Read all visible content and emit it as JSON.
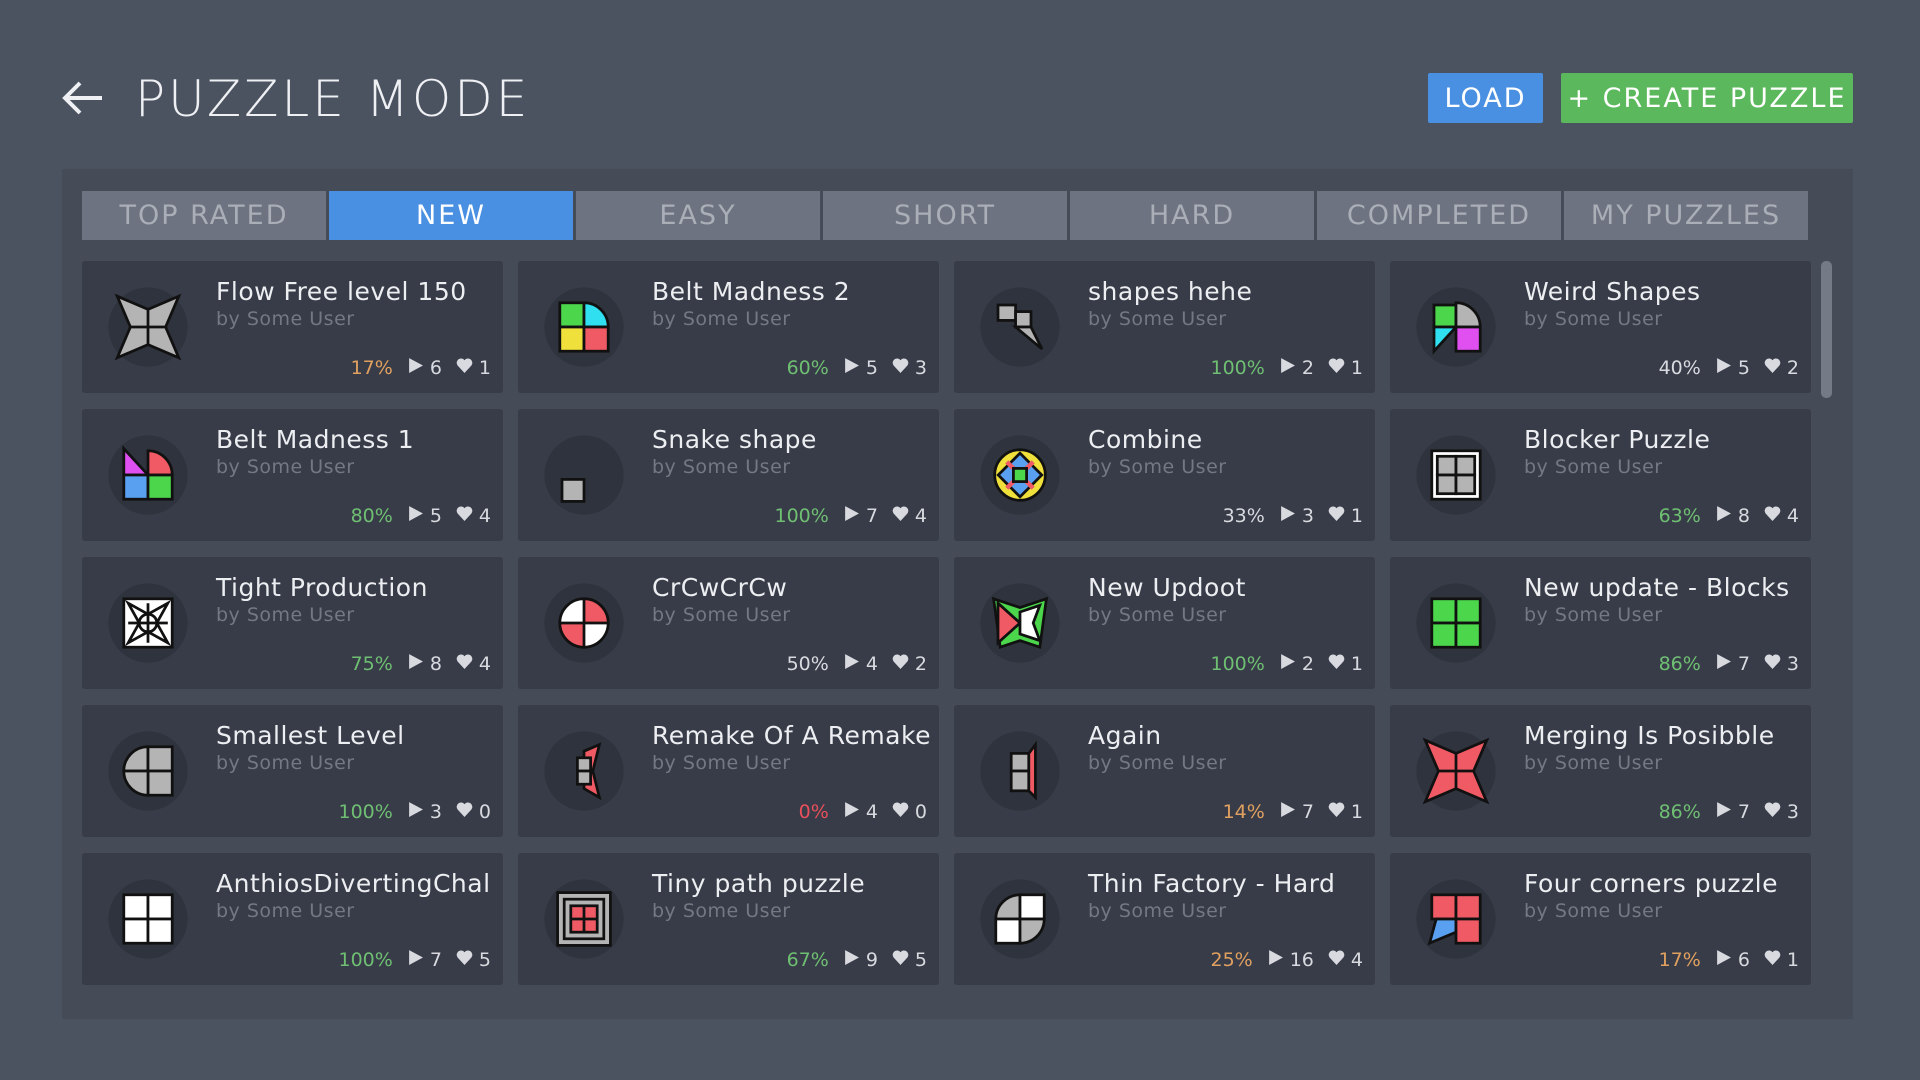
{
  "header": {
    "title": "PUZZLE MODE",
    "load_label": "LOAD",
    "create_label": "+ CREATE PUZZLE"
  },
  "tabs": [
    {
      "label": "TOP RATED",
      "active": false
    },
    {
      "label": "NEW",
      "active": true
    },
    {
      "label": "EASY",
      "active": false
    },
    {
      "label": "SHORT",
      "active": false
    },
    {
      "label": "HARD",
      "active": false
    },
    {
      "label": "COMPLETED",
      "active": false
    },
    {
      "label": "MY PUZZLES",
      "active": false
    }
  ],
  "colors": {
    "accent": "#4a90e2",
    "create": "#5cb85c",
    "green": "#6fbf73",
    "orange": "#e0a060",
    "red": "#e8505b",
    "neutral": "#d8dadf"
  },
  "puzzles": [
    {
      "title": "Flow Free level 150",
      "author": "by Some User",
      "completion": "17%",
      "pct_color": "orange",
      "plays": "6",
      "likes": "1",
      "icon": "star-gray"
    },
    {
      "title": "Belt Madness 2",
      "author": "by Some User",
      "completion": "60%",
      "pct_color": "green",
      "plays": "5",
      "likes": "3",
      "icon": "quad-color-round"
    },
    {
      "title": "shapes hehe",
      "author": "by Some User",
      "completion": "100%",
      "pct_color": "green",
      "plays": "2",
      "likes": "1",
      "icon": "shapes-gray"
    },
    {
      "title": "Weird Shapes",
      "author": "by Some User",
      "completion": "40%",
      "pct_color": "neutral",
      "plays": "5",
      "likes": "2",
      "icon": "weird-color"
    },
    {
      "title": "Belt Madness 1",
      "author": "by Some User",
      "completion": "80%",
      "pct_color": "green",
      "plays": "5",
      "likes": "4",
      "icon": "belt-color"
    },
    {
      "title": "Snake shape",
      "author": "by Some User",
      "completion": "100%",
      "pct_color": "green",
      "plays": "7",
      "likes": "4",
      "icon": "small-square"
    },
    {
      "title": "Combine",
      "author": "by Some User",
      "completion": "33%",
      "pct_color": "neutral",
      "plays": "3",
      "likes": "1",
      "icon": "combine-color"
    },
    {
      "title": "Blocker Puzzle",
      "author": "by Some User",
      "completion": "63%",
      "pct_color": "green",
      "plays": "8",
      "likes": "4",
      "icon": "blocker-gray"
    },
    {
      "title": "Tight Production",
      "author": "by Some User",
      "completion": "75%",
      "pct_color": "green",
      "plays": "8",
      "likes": "4",
      "icon": "tight-white"
    },
    {
      "title": "CrCwCrCw",
      "author": "by Some User",
      "completion": "50%",
      "pct_color": "neutral",
      "plays": "4",
      "likes": "2",
      "icon": "circle-red-white"
    },
    {
      "title": "New Updoot",
      "author": "by Some User",
      "completion": "100%",
      "pct_color": "green",
      "plays": "2",
      "likes": "1",
      "icon": "updoot-color"
    },
    {
      "title": "New update - Blocks",
      "author": "by Some User",
      "completion": "86%",
      "pct_color": "green",
      "plays": "7",
      "likes": "3",
      "icon": "quad-green"
    },
    {
      "title": "Smallest Level",
      "author": "by Some User",
      "completion": "100%",
      "pct_color": "green",
      "plays": "3",
      "likes": "0",
      "icon": "quad-gray-round"
    },
    {
      "title": "Remake Of A Remake",
      "author": "by Some User",
      "completion": "0%",
      "pct_color": "red",
      "plays": "4",
      "likes": "0",
      "icon": "remake"
    },
    {
      "title": "Again",
      "author": "by Some User",
      "completion": "14%",
      "pct_color": "orange",
      "plays": "7",
      "likes": "1",
      "icon": "again"
    },
    {
      "title": "Merging Is Posibble",
      "author": "by Some User",
      "completion": "86%",
      "pct_color": "green",
      "plays": "7",
      "likes": "3",
      "icon": "star-red"
    },
    {
      "title": "AnthiosDivertingChal",
      "author": "by Some User",
      "completion": "100%",
      "pct_color": "green",
      "plays": "7",
      "likes": "5",
      "icon": "quad-white"
    },
    {
      "title": "Tiny path puzzle",
      "author": "by Some User",
      "completion": "67%",
      "pct_color": "green",
      "plays": "9",
      "likes": "5",
      "icon": "tiny-path"
    },
    {
      "title": "Thin Factory - Hard",
      "author": "by Some User",
      "completion": "25%",
      "pct_color": "orange",
      "plays": "16",
      "likes": "4",
      "icon": "thin-factory"
    },
    {
      "title": "Four corners puzzle",
      "author": "by Some User",
      "completion": "17%",
      "pct_color": "orange",
      "plays": "6",
      "likes": "1",
      "icon": "four-corners"
    }
  ]
}
